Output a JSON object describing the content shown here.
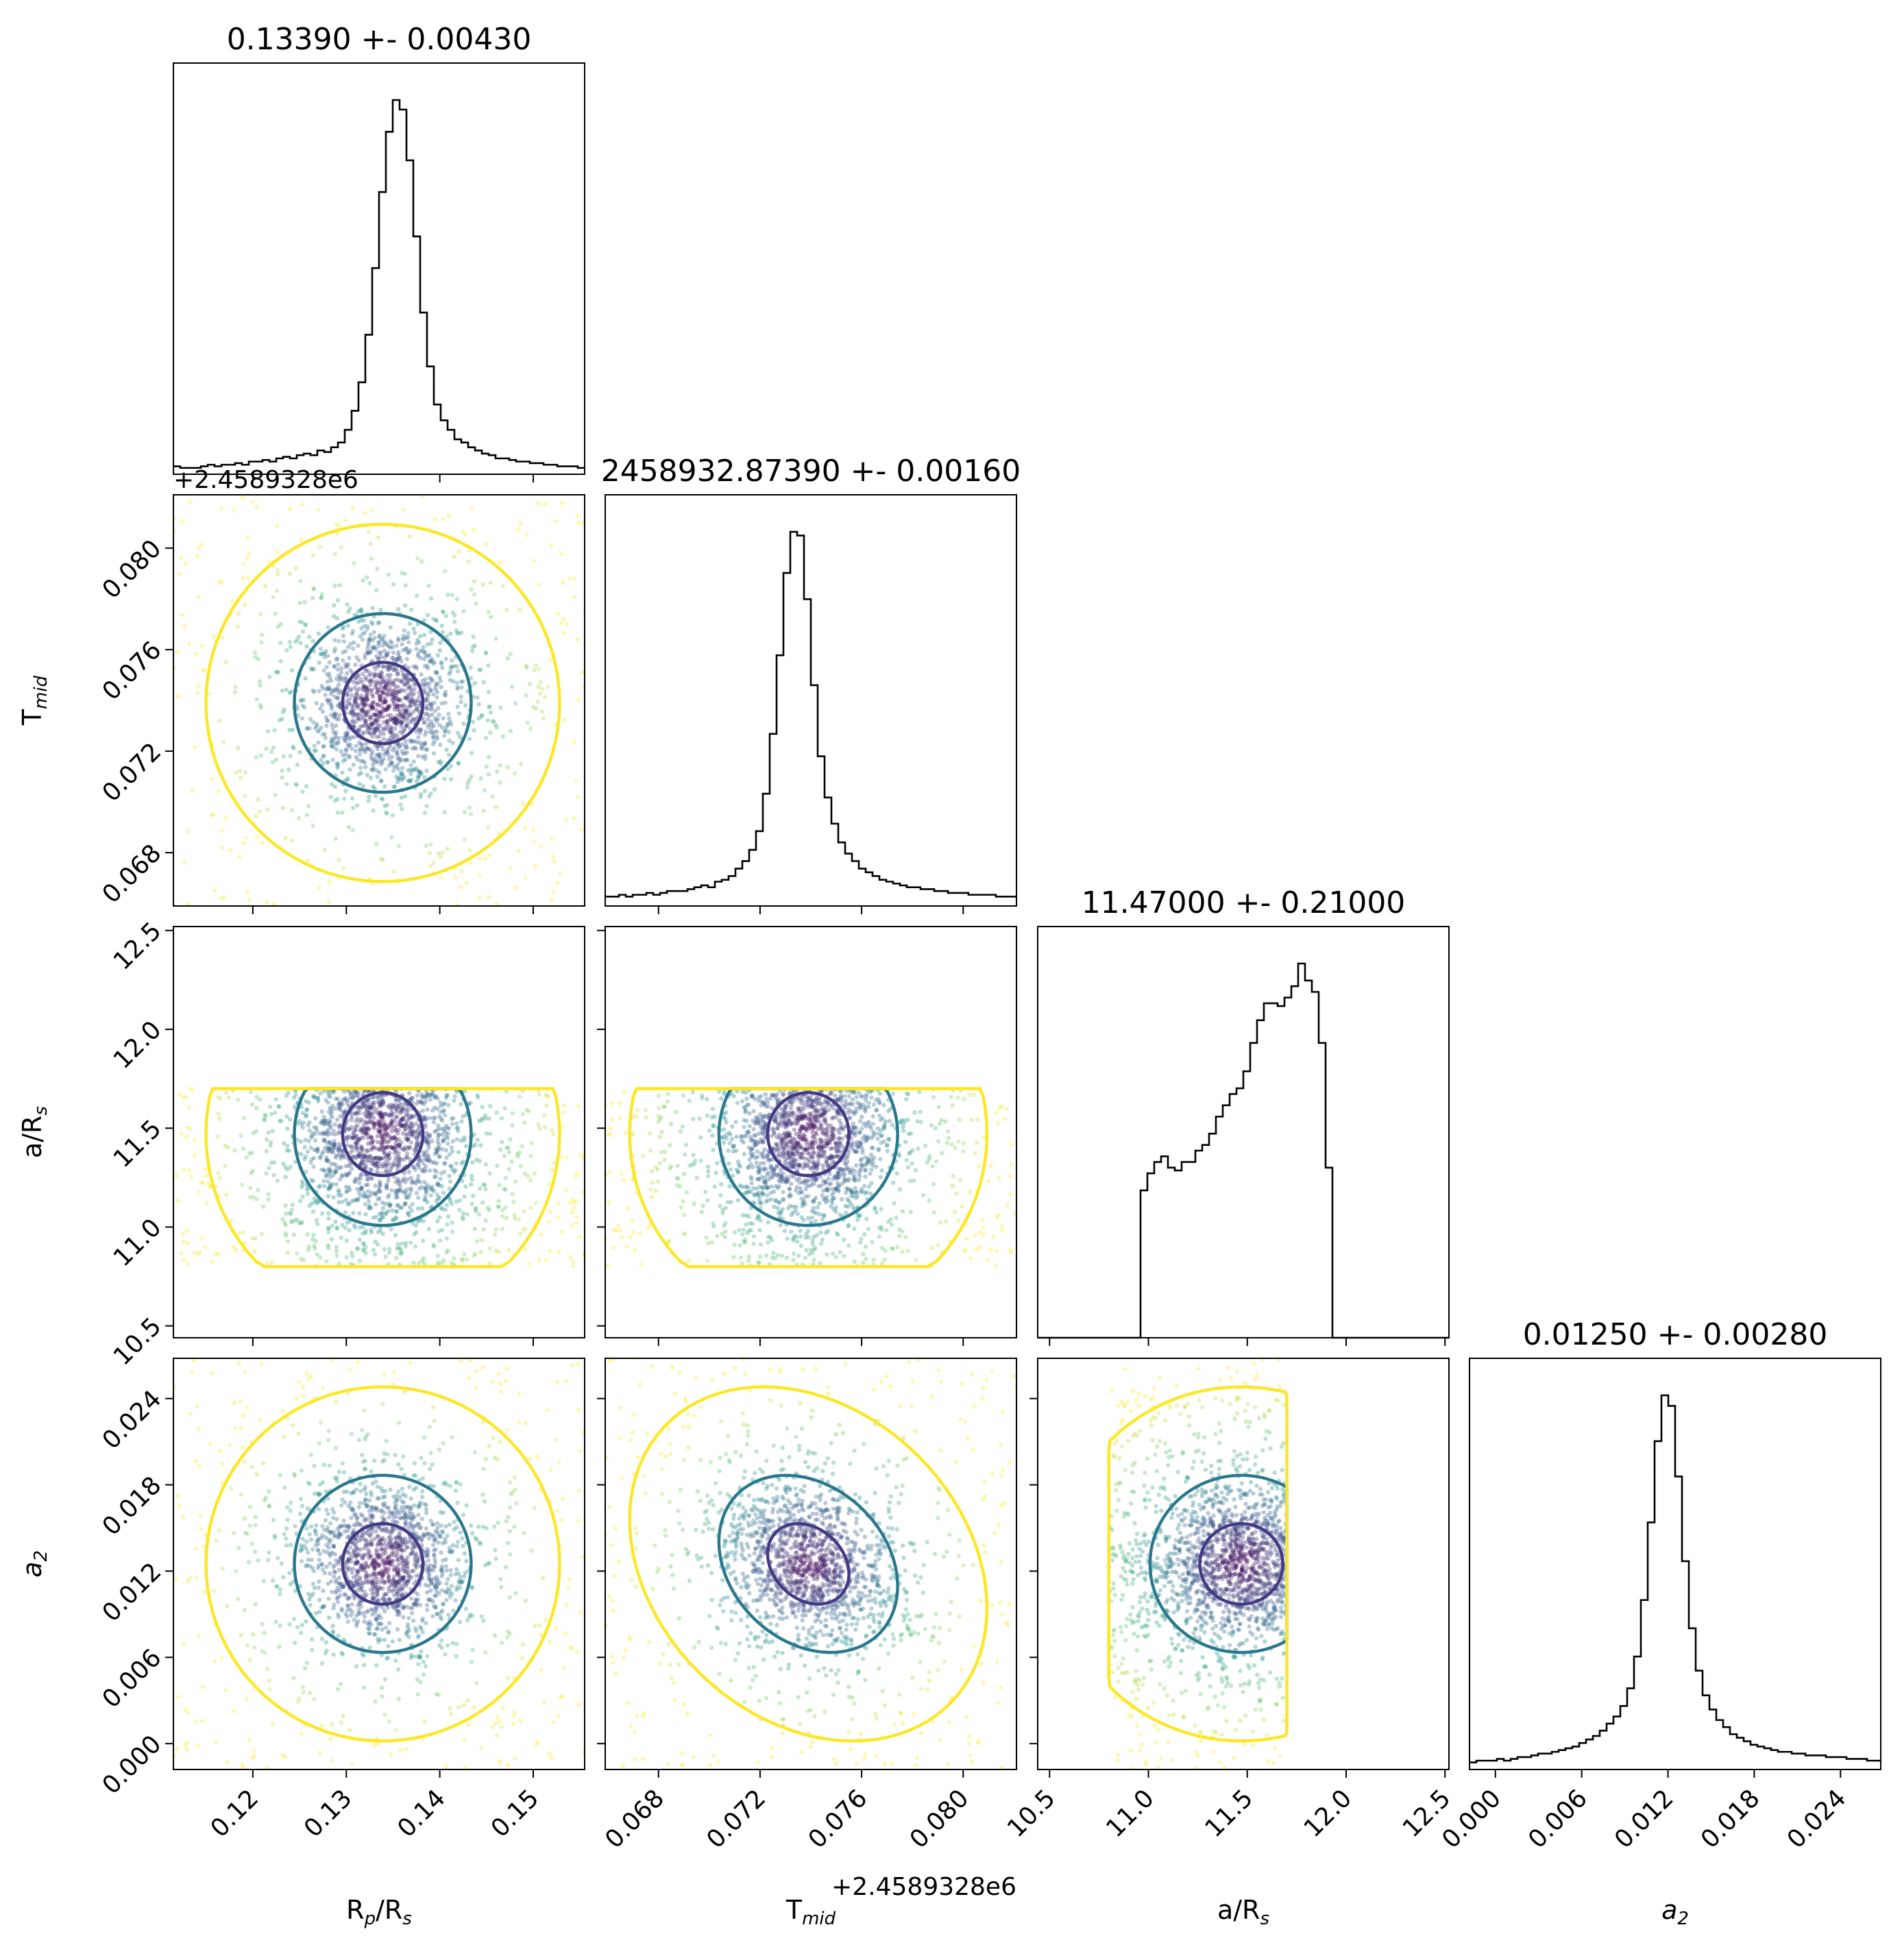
{
  "chart_data": {
    "type": "corner-plot",
    "grid": false,
    "legend": "none",
    "parameters": [
      {
        "id": "rprs",
        "label": "Rp/Rs",
        "label_main": "R",
        "label_sub1": "p",
        "label_mid": "/R",
        "label_sub2": "s",
        "range": [
          0.1115,
          0.1555
        ],
        "ticks": [
          0.12,
          0.13,
          0.14,
          0.15
        ],
        "tick_labels": [
          "0.12",
          "0.13",
          "0.14",
          "0.15"
        ],
        "median": 0.1339,
        "std": 0.0043
      },
      {
        "id": "tmid",
        "label": "Tmid",
        "label_main": "T",
        "label_sub1": "mid",
        "label_mid": "",
        "label_sub2": "",
        "range": [
          0.0659,
          0.0821
        ],
        "ticks": [
          0.068,
          0.072,
          0.076,
          0.08
        ],
        "tick_labels": [
          "0.068",
          "0.072",
          "0.076",
          "0.080"
        ],
        "offset_label": "+2.4589328e6",
        "median": 0.0739,
        "std": 0.0016
      },
      {
        "id": "ars",
        "label": "a/Rs",
        "label_main": "a/R",
        "label_sub1": "",
        "label_mid": "",
        "label_sub2": "s",
        "range": [
          10.44,
          12.52
        ],
        "ticks": [
          10.5,
          11.0,
          11.5,
          12.0,
          12.5
        ],
        "tick_labels": [
          "10.5",
          "11.0",
          "11.5",
          "12.0",
          "12.5"
        ],
        "median": 11.47,
        "std": 0.21
      },
      {
        "id": "a2",
        "label": "a2",
        "label_main": "a",
        "label_sub1": "",
        "label_mid": "",
        "label_sub2": "2",
        "italic": true,
        "range": [
          -0.0018,
          0.0268
        ],
        "ticks": [
          0.0,
          0.006,
          0.012,
          0.018,
          0.024
        ],
        "tick_labels": [
          "0.000",
          "0.006",
          "0.012",
          "0.018",
          "0.024"
        ],
        "median": 0.0125,
        "std": 0.0028
      }
    ],
    "titles": [
      "0.13390 +- 0.00430",
      "2458932.87390 +- 0.00160",
      "11.47000 +- 0.21000",
      "0.01250 +- 0.00280"
    ],
    "histograms": [
      {
        "param": "rprs",
        "bins": 60,
        "range": [
          0.1115,
          0.1555
        ],
        "counts": [
          5,
          4,
          4,
          4,
          5,
          6,
          5,
          6,
          6,
          7,
          6,
          8,
          8,
          9,
          8,
          10,
          11,
          10,
          12,
          13,
          12,
          15,
          14,
          17,
          20,
          28,
          40,
          58,
          88,
          130,
          178,
          216,
          236,
          230,
          198,
          150,
          102,
          68,
          44,
          34,
          28,
          22,
          20,
          17,
          15,
          13,
          12,
          10,
          10,
          9,
          8,
          8,
          7,
          7,
          6,
          6,
          5,
          5,
          5,
          4
        ]
      },
      {
        "param": "tmid",
        "bins": 60,
        "range": [
          0.0659,
          0.0821
        ],
        "counts": [
          5,
          5,
          6,
          5,
          6,
          6,
          7,
          6,
          7,
          8,
          8,
          8,
          9,
          10,
          11,
          10,
          13,
          14,
          16,
          20,
          24,
          30,
          40,
          60,
          92,
          134,
          178,
          200,
          198,
          164,
          118,
          80,
          58,
          44,
          34,
          28,
          24,
          20,
          18,
          16,
          14,
          13,
          12,
          11,
          10,
          10,
          9,
          9,
          8,
          8,
          7,
          7,
          7,
          6,
          6,
          6,
          6,
          5,
          5,
          5
        ]
      },
      {
        "param": "ars",
        "bins": 60,
        "range": [
          10.44,
          12.52
        ],
        "counts": [
          0,
          0,
          0,
          0,
          0,
          0,
          0,
          0,
          0,
          0,
          0,
          0,
          0,
          0,
          0,
          52,
          58,
          62,
          64,
          60,
          59,
          62,
          62,
          66,
          68,
          72,
          78,
          82,
          86,
          88,
          94,
          104,
          112,
          118,
          118,
          117,
          120,
          124,
          132,
          126,
          122,
          104,
          60,
          0,
          0,
          0,
          0,
          0,
          0,
          0,
          0,
          0,
          0,
          0,
          0,
          0,
          0,
          0,
          0,
          0
        ]
      },
      {
        "param": "a2",
        "bins": 60,
        "range": [
          -0.0018,
          0.0268
        ],
        "counts": [
          4,
          5,
          5,
          5,
          6,
          5,
          6,
          7,
          7,
          8,
          9,
          9,
          10,
          11,
          12,
          13,
          15,
          17,
          19,
          22,
          26,
          30,
          36,
          46,
          64,
          96,
          140,
          186,
          212,
          206,
          166,
          118,
          80,
          56,
          42,
          34,
          28,
          24,
          20,
          18,
          16,
          14,
          13,
          12,
          11,
          10,
          10,
          9,
          9,
          8,
          8,
          8,
          7,
          7,
          7,
          6,
          6,
          6,
          5,
          5
        ]
      }
    ],
    "scatter_pairs": [
      {
        "x": "rprs",
        "y": "tmid",
        "x_center": 0.1339,
        "y_center": 0.0739,
        "x_sigma": 0.0043,
        "y_sigma": 0.0016,
        "rho": 0.0,
        "x_clip": null,
        "y_clip": null
      },
      {
        "x": "rprs",
        "y": "ars",
        "x_center": 0.1339,
        "y_center": 11.47,
        "x_sigma": 0.0043,
        "y_sigma": 0.21,
        "rho": 0.0,
        "x_clip": null,
        "y_clip": [
          10.8,
          11.7
        ]
      },
      {
        "x": "tmid",
        "y": "ars",
        "x_center": 0.0739,
        "y_center": 11.47,
        "x_sigma": 0.0016,
        "y_sigma": 0.21,
        "rho": 0.0,
        "x_clip": null,
        "y_clip": [
          10.8,
          11.7
        ]
      },
      {
        "x": "rprs",
        "y": "a2",
        "x_center": 0.1339,
        "y_center": 0.0125,
        "x_sigma": 0.0043,
        "y_sigma": 0.0028,
        "rho": 0.0,
        "x_clip": null,
        "y_clip": null
      },
      {
        "x": "tmid",
        "y": "a2",
        "x_center": 0.0739,
        "y_center": 0.0125,
        "x_sigma": 0.0016,
        "y_sigma": 0.0028,
        "rho": -0.25,
        "x_clip": null,
        "y_clip": null
      },
      {
        "x": "ars",
        "y": "a2",
        "x_center": 11.47,
        "y_center": 0.0125,
        "x_sigma": 0.21,
        "y_sigma": 0.0028,
        "rho": 0.0,
        "x_clip": [
          10.8,
          11.7
        ],
        "y_clip": null
      }
    ],
    "colors": {
      "histogram": "#000000",
      "contour_inner": "#443983",
      "contour_middle": "#2a788e",
      "contour_outer": "#fde725",
      "points_viridis": [
        "#440154",
        "#3b528b",
        "#21918c",
        "#5ec962",
        "#fde725"
      ]
    }
  }
}
